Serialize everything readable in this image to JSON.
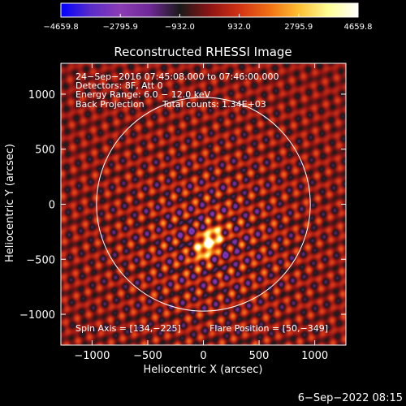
{
  "chart_data": {
    "type": "heatmap",
    "title": "Reconstructed RHESSI Image",
    "xlabel": "Heliocentric X (arcsec)",
    "ylabel": "Heliocentric Y (arcsec)",
    "xlim": [
      -1280,
      1280
    ],
    "ylim": [
      -1280,
      1280
    ],
    "x_ticks": [
      -1000,
      -500,
      0,
      500,
      1000
    ],
    "y_ticks": [
      -1000,
      -500,
      0,
      500,
      1000
    ],
    "x_tick_labels": [
      "−1000",
      "−500",
      "0",
      "500",
      "1000"
    ],
    "y_tick_labels": [
      "−1000",
      "−500",
      "0",
      "500",
      "1000"
    ],
    "colorbar": {
      "range": [
        -4659.8,
        4659.8
      ],
      "ticks": [
        -4659.8,
        -2795.9,
        -932.0,
        932.0,
        2795.9,
        4659.8
      ],
      "tick_labels": [
        "−4659.8",
        "−2795.9",
        "−932.0",
        "932.0",
        "2795.9",
        "4659.8"
      ]
    },
    "solar_disk_radius": 960,
    "flare_position": [
      50,
      -349
    ],
    "spin_axis": [
      134,
      -225
    ],
    "annotations": [
      "24−Sep−2016 07:45:08.000 to 07:46:00.000",
      "Detectors: 8F, Att 0",
      "Energy Range: 6.0 − 12.0 keV",
      "Back Projection",
      "Total counts: 1.34E+03"
    ],
    "footer_left": "Spin Axis = [134,−225]",
    "footer_right": "Flare Position = [50,−349]"
  },
  "timestamp": "6−Sep−2022 08:15",
  "colors": {
    "colormap": [
      "#0000ff",
      "#5a2cc8",
      "#8c3cb4",
      "#6e2896",
      "#1a1a1a",
      "#8c1414",
      "#d23214",
      "#f06e14",
      "#ffbe32",
      "#ffff96",
      "#ffffff"
    ],
    "axes": "#ffffff",
    "background": "#000000",
    "disk_circle": "#ffffff"
  }
}
